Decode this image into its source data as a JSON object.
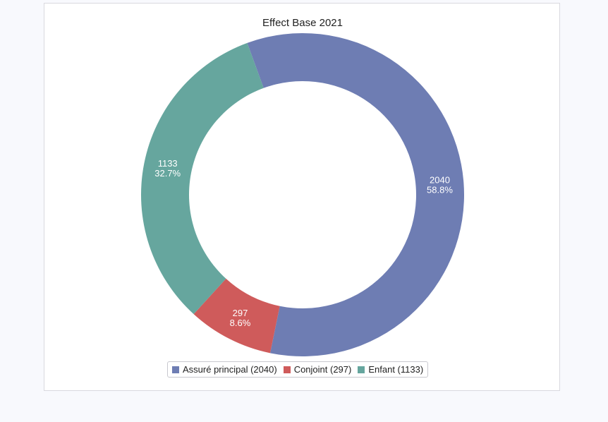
{
  "chart_data": {
    "type": "pie",
    "variant": "donut",
    "title": "Effect Base 2021",
    "slices": [
      {
        "label": "Assuré principal",
        "value": 2040,
        "percent": "58.8%",
        "color": "#6e7db3",
        "legend": "Assuré principal (2040)"
      },
      {
        "label": "Conjoint",
        "value": 297,
        "percent": "8.6%",
        "color": "#cf5b5b",
        "legend": "Conjoint (297)"
      },
      {
        "label": "Enfant",
        "value": 1133,
        "percent": "32.7%",
        "color": "#66a69e",
        "legend": "Enfant (1133)"
      }
    ],
    "legend_position": "bottom"
  }
}
